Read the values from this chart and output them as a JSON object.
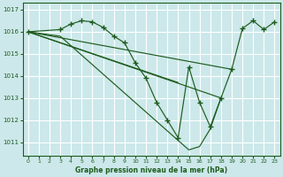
{
  "title": "Graphe pression niveau de la mer (hPa)",
  "bg_color": "#cce8ea",
  "grid_color": "#ffffff",
  "line_color": "#1e5c1e",
  "ylim": [
    1010.4,
    1017.3
  ],
  "yticks": [
    1011,
    1012,
    1013,
    1014,
    1015,
    1016,
    1017
  ],
  "xlim": [
    -0.5,
    23.5
  ],
  "xticks": [
    0,
    1,
    2,
    3,
    4,
    5,
    6,
    7,
    8,
    9,
    10,
    11,
    12,
    13,
    14,
    15,
    16,
    17,
    18,
    19,
    20,
    21,
    22,
    23
  ],
  "main_series": {
    "x": [
      0,
      3,
      4,
      5,
      6,
      7,
      8,
      9,
      10,
      11,
      12,
      13,
      14,
      15,
      16,
      17,
      18,
      19,
      20,
      21,
      22,
      23
    ],
    "y": [
      1016.0,
      1016.1,
      1016.35,
      1016.5,
      1016.45,
      1016.2,
      1015.8,
      1015.5,
      1014.6,
      1013.9,
      1012.8,
      1012.0,
      1011.2,
      1014.4,
      1012.8,
      1011.7,
      1013.0,
      1014.3,
      1016.15,
      1016.5,
      1016.1,
      1016.45
    ]
  },
  "ref_lines": [
    {
      "x": [
        0,
        19
      ],
      "y": [
        1016.0,
        1014.3
      ]
    },
    {
      "x": [
        0,
        14
      ],
      "y": [
        1016.0,
        1013.7
      ]
    },
    {
      "x": [
        0,
        18
      ],
      "y": [
        1016.0,
        1013.0
      ]
    }
  ],
  "extra_line": {
    "x": [
      0,
      3,
      15,
      16,
      17,
      18
    ],
    "y": [
      1016.0,
      1015.8,
      1010.65,
      1010.8,
      1011.6,
      1013.0
    ]
  }
}
